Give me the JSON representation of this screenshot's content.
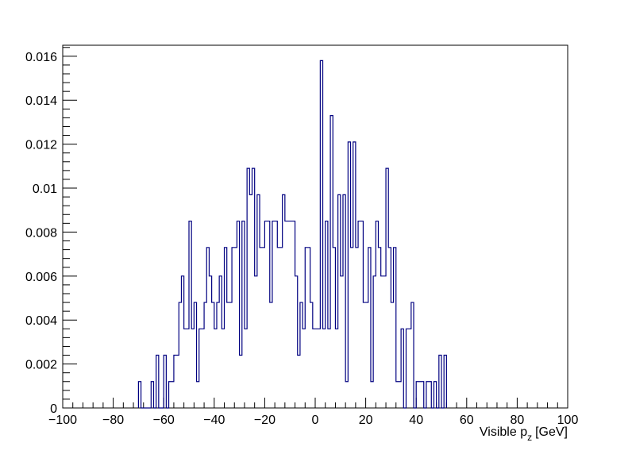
{
  "chart_data": {
    "type": "histogram",
    "title": "",
    "xlabel": "Visible p",
    "xlabel_sub": "z",
    "xlabel_unit": "[GeV]",
    "ylabel": "",
    "xlim": [
      -100,
      100
    ],
    "ylim": [
      0,
      0.0165
    ],
    "grid": false,
    "legend": "none",
    "line_color": "#000080",
    "x_ticks": [
      -100,
      -80,
      -60,
      -40,
      -20,
      0,
      20,
      40,
      60,
      80,
      100
    ],
    "x_tick_labels": [
      "−100",
      "−80",
      "−60",
      "−40",
      "−20",
      "0",
      "20",
      "40",
      "60",
      "80",
      "100"
    ],
    "y_ticks": [
      0,
      0.002,
      0.004,
      0.006,
      0.008,
      0.01,
      0.012,
      0.014,
      0.016
    ],
    "y_tick_labels": [
      "0",
      "0.002",
      "0.004",
      "0.006",
      "0.008",
      "0.01",
      "0.012",
      "0.014",
      "0.016"
    ],
    "bin_width": 1,
    "bin_start": -70,
    "values": [
      0.0012,
      0,
      0,
      0,
      0,
      0.0012,
      0,
      0.0024,
      0,
      0,
      0.0024,
      0,
      0.0012,
      0.0012,
      0.0024,
      0.0024,
      0.0048,
      0.006,
      0.0036,
      0.0036,
      0.0085,
      0.0036,
      0.0048,
      0.0012,
      0.0036,
      0.0036,
      0.0048,
      0.0073,
      0.006,
      0.0048,
      0.0036,
      0.0048,
      0.006,
      0.0036,
      0.0073,
      0.0048,
      0.0048,
      0.0073,
      0.0073,
      0.0085,
      0.0024,
      0.0085,
      0.0036,
      0.0109,
      0.0097,
      0.0109,
      0.006,
      0.0097,
      0.0073,
      0.0073,
      0.0085,
      0.0085,
      0.0048,
      0.0085,
      0.0085,
      0.0073,
      0.0073,
      0.0097,
      0.0085,
      0.0085,
      0.0085,
      0.0085,
      0.006,
      0.0024,
      0.0048,
      0.0036,
      0.0073,
      0.0073,
      0.0048,
      0.0036,
      0.0036,
      0.0036,
      0.0158,
      0.0036,
      0.0085,
      0.0036,
      0.0133,
      0.0073,
      0.0036,
      0.0097,
      0.006,
      0.0097,
      0.0012,
      0.0121,
      0.0073,
      0.0121,
      0.0073,
      0.0085,
      0.0085,
      0.0048,
      0.0048,
      0.0073,
      0.0012,
      0.006,
      0.0085,
      0.0073,
      0.006,
      0.006,
      0.0109,
      0.0073,
      0.0048,
      0.0073,
      0.0012,
      0.0012,
      0.0036,
      0,
      0.0036,
      0.0036,
      0.0048,
      0,
      0.0012,
      0.0012,
      0.0012,
      0,
      0.0012,
      0.0012,
      0,
      0.0012,
      0,
      0.0024,
      0,
      0.0024
    ]
  }
}
